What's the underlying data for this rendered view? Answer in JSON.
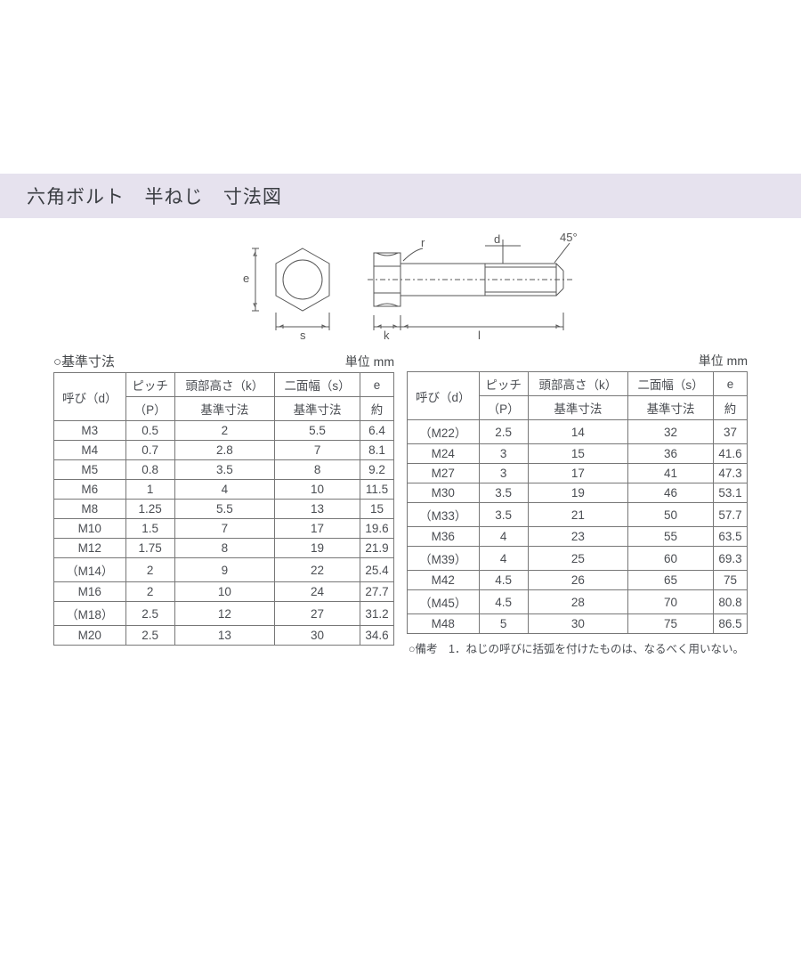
{
  "title_parts": [
    "六角ボルト",
    "半ねじ",
    "寸法図"
  ],
  "colors": {
    "title_bg": "#e6e2ee",
    "text": "#44474a",
    "border": "#777777",
    "bg": "#ffffff",
    "diagram_fill": "#ffffff",
    "diagram_stroke": "#555555"
  },
  "diagram": {
    "labels": {
      "e": "e",
      "s": "s",
      "k": "k",
      "l": "l",
      "d": "d",
      "r": "r",
      "angle": "45°"
    }
  },
  "caption_left": "○基準寸法",
  "unit_label": "単位 mm",
  "header": {
    "col1_top": "呼び（d）",
    "col2_top": "ピッチ",
    "col2_bot": "（P）",
    "col3_top": "頭部高さ（k）",
    "col3_bot": "基準寸法",
    "col4_top": "二面幅（s）",
    "col4_bot": "基準寸法",
    "col5_top": "e",
    "col5_bot": "約"
  },
  "table1": {
    "rows": [
      [
        "M3",
        "0.5",
        "2",
        "5.5",
        "6.4"
      ],
      [
        "M4",
        "0.7",
        "2.8",
        "7",
        "8.1"
      ],
      [
        "M5",
        "0.8",
        "3.5",
        "8",
        "9.2"
      ],
      [
        "M6",
        "1",
        "4",
        "10",
        "11.5"
      ],
      [
        "M8",
        "1.25",
        "5.5",
        "13",
        "15"
      ],
      [
        "M10",
        "1.5",
        "7",
        "17",
        "19.6"
      ],
      [
        "M12",
        "1.75",
        "8",
        "19",
        "21.9"
      ],
      [
        "（M14）",
        "2",
        "9",
        "22",
        "25.4"
      ],
      [
        "M16",
        "2",
        "10",
        "24",
        "27.7"
      ],
      [
        "（M18）",
        "2.5",
        "12",
        "27",
        "31.2"
      ],
      [
        "M20",
        "2.5",
        "13",
        "30",
        "34.6"
      ]
    ]
  },
  "table2": {
    "rows": [
      [
        "（M22）",
        "2.5",
        "14",
        "32",
        "37"
      ],
      [
        "M24",
        "3",
        "15",
        "36",
        "41.6"
      ],
      [
        "M27",
        "3",
        "17",
        "41",
        "47.3"
      ],
      [
        "M30",
        "3.5",
        "19",
        "46",
        "53.1"
      ],
      [
        "（M33）",
        "3.5",
        "21",
        "50",
        "57.7"
      ],
      [
        "M36",
        "4",
        "23",
        "55",
        "63.5"
      ],
      [
        "（M39）",
        "4",
        "25",
        "60",
        "69.3"
      ],
      [
        "M42",
        "4.5",
        "26",
        "65",
        "75"
      ],
      [
        "（M45）",
        "4.5",
        "28",
        "70",
        "80.8"
      ],
      [
        "M48",
        "5",
        "30",
        "75",
        "86.5"
      ]
    ]
  },
  "footnote": "○備考　1．ねじの呼びに括弧を付けたものは、なるべく用いない。"
}
